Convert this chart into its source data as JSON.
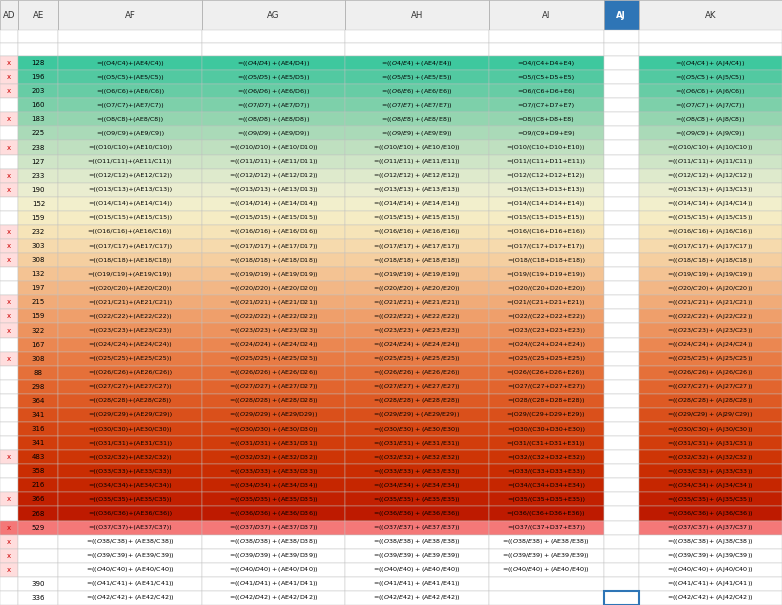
{
  "col_headers": [
    "AD",
    "AE",
    "AF",
    "AG",
    "AH",
    "AI",
    "AJ",
    "AK"
  ],
  "col_widths_rel": [
    0.22,
    0.48,
    1.72,
    1.72,
    1.72,
    1.38,
    0.42,
    1.72
  ],
  "rows": [
    {
      "ad": "x",
      "ae": "128",
      "ri": 4,
      "color": "#3ec89e",
      "af_rel": true,
      "ai_short": true
    },
    {
      "ad": "x",
      "ae": "196",
      "ri": 5,
      "color": "#52c9a1",
      "af_rel": true,
      "ai_short": true
    },
    {
      "ad": "x",
      "ae": "203",
      "ri": 6,
      "color": "#67cca5",
      "af_rel": true,
      "ai_short": true
    },
    {
      "ad": "",
      "ae": "160",
      "ri": 7,
      "color": "#7dd0aa",
      "af_rel": true,
      "ai_short": true
    },
    {
      "ad": "x",
      "ae": "183",
      "ri": 8,
      "color": "#94d5b0",
      "af_rel": true,
      "ai_short": true
    },
    {
      "ad": "",
      "ae": "225",
      "ri": 9,
      "color": "#aadab8",
      "af_rel": true,
      "ai_short": true
    },
    {
      "ad": "x",
      "ae": "238",
      "ri": 10,
      "color": "#bfe0c0",
      "af_rel": false,
      "ai_short": false
    },
    {
      "ad": "",
      "ae": "127",
      "ri": 11,
      "color": "#cfe5c7",
      "af_rel": false,
      "ai_short": false
    },
    {
      "ad": "x",
      "ae": "233",
      "ri": 12,
      "color": "#deeacc",
      "af_rel": false,
      "ai_short": false
    },
    {
      "ad": "x",
      "ae": "190",
      "ri": 13,
      "color": "#eaedd0",
      "af_rel": false,
      "ai_short": false
    },
    {
      "ad": "",
      "ae": "152",
      "ri": 14,
      "color": "#f2efcc",
      "af_rel": false,
      "ai_short": false
    },
    {
      "ad": "",
      "ae": "159",
      "ri": 15,
      "color": "#f5ecc4",
      "af_rel": false,
      "ai_short": false
    },
    {
      "ad": "x",
      "ae": "232",
      "ri": 16,
      "color": "#f6e4b8",
      "af_rel": false,
      "ai_short": false
    },
    {
      "ad": "x",
      "ae": "303",
      "ri": 17,
      "color": "#f6daad",
      "af_rel": false,
      "ai_short": false
    },
    {
      "ad": "x",
      "ae": "308",
      "ri": 18,
      "color": "#f5cfa0",
      "af_rel": false,
      "ai_short": false
    },
    {
      "ad": "",
      "ae": "132",
      "ri": 19,
      "color": "#f4c393",
      "af_rel": false,
      "ai_short": false
    },
    {
      "ad": "",
      "ae": "197",
      "ri": 20,
      "color": "#f2b786",
      "af_rel": false,
      "ai_short": false
    },
    {
      "ad": "x",
      "ae": "215",
      "ri": 21,
      "color": "#f1ab78",
      "af_rel": false,
      "ai_short": false
    },
    {
      "ad": "x",
      "ae": "159",
      "ri": 22,
      "color": "#ef9f6b",
      "af_rel": false,
      "ai_short": false
    },
    {
      "ad": "x",
      "ae": "322",
      "ri": 23,
      "color": "#ed935e",
      "af_rel": false,
      "ai_short": false
    },
    {
      "ad": "",
      "ae": "167",
      "ri": 24,
      "color": "#eb8751",
      "af_rel": false,
      "ai_short": false
    },
    {
      "ad": "x",
      "ae": "308",
      "ri": 25,
      "color": "#e87b44",
      "af_rel": false,
      "ai_short": false
    },
    {
      "ad": "",
      "ae": "88",
      "ri": 26,
      "color": "#e57039",
      "af_rel": false,
      "ai_short": false
    },
    {
      "ad": "",
      "ae": "298",
      "ri": 27,
      "color": "#e2652e",
      "af_rel": false,
      "ai_short": false
    },
    {
      "ad": "",
      "ae": "364",
      "ri": 28,
      "color": "#de5a24",
      "af_rel": false,
      "ai_short": false
    },
    {
      "ad": "",
      "ae": "341",
      "ri": 29,
      "color": "#da501b",
      "af_rel": false,
      "ai_short": false
    },
    {
      "ad": "",
      "ae": "316",
      "ri": 30,
      "color": "#d64613",
      "af_rel": false,
      "ai_short": false
    },
    {
      "ad": "",
      "ae": "341",
      "ri": 31,
      "color": "#d23d0c",
      "af_rel": false,
      "ai_short": false
    },
    {
      "ad": "x",
      "ae": "483",
      "ri": 32,
      "color": "#ce3506",
      "af_rel": false,
      "ai_short": false
    },
    {
      "ad": "",
      "ae": "358",
      "ri": 33,
      "color": "#ca2d02",
      "af_rel": false,
      "ai_short": false
    },
    {
      "ad": "",
      "ae": "216",
      "ri": 34,
      "color": "#c62600",
      "af_rel": false,
      "ai_short": false
    },
    {
      "ad": "x",
      "ae": "366",
      "ri": 35,
      "color": "#c22000",
      "af_rel": false,
      "ai_short": false
    },
    {
      "ad": "",
      "ae": "268",
      "ri": 36,
      "color": "#be1a00",
      "af_rel": false,
      "ai_short": false
    },
    {
      "ad": "x",
      "ae": "529",
      "ri": 37,
      "color": "#f47878",
      "af_rel": false,
      "ai_short": false,
      "red_row": true
    },
    {
      "ad": "x",
      "ae": "",
      "ri": 38,
      "color": "#ffffff",
      "af_rel": false,
      "ai_short": false,
      "bottom_rows": true
    },
    {
      "ad": "x",
      "ae": "",
      "ri": 39,
      "color": "#ffffff",
      "af_rel": false,
      "ai_short": false,
      "bottom_rows": true
    },
    {
      "ad": "x",
      "ae": "",
      "ri": 40,
      "color": "#ffffff",
      "af_rel": false,
      "ai_short": false,
      "bottom_rows": true
    },
    {
      "ad": "",
      "ae": "390",
      "ri": 41,
      "color": "#ffffff",
      "af_rel": false,
      "ai_short": false,
      "bottom_rows": true
    },
    {
      "ad": "",
      "ae": "336",
      "ri": 42,
      "color": "#ffffff",
      "af_rel": false,
      "ai_short": false,
      "bottom_rows": true
    }
  ],
  "aj_header_bg": "#2e75b6",
  "aj_header_fg": "#ffffff",
  "header_bg": "#efefef",
  "header_fg": "#333333",
  "grid_color": "#c0c0c0",
  "ad_x_fg": "#cc0000",
  "ad_x_bg": "#ffdddd",
  "aj_col_idx": 6,
  "last_aj_border": "#2e75b6"
}
